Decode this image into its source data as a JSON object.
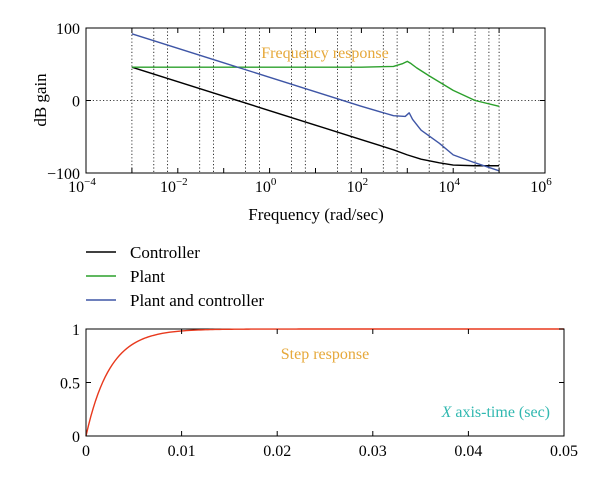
{
  "chart_data": [
    {
      "type": "line",
      "title": "Frequency response",
      "xlabel": "Frequency (rad/sec)",
      "ylabel": "dB gain",
      "xscale": "log",
      "xlim": [
        0.0001,
        1000000
      ],
      "ylim": [
        -100,
        100
      ],
      "xticks": [
        {
          "base": "10",
          "exp": "−4"
        },
        {
          "base": "10",
          "exp": "−2"
        },
        {
          "base": "10",
          "exp": "0"
        },
        {
          "base": "10",
          "exp": "2"
        },
        {
          "base": "10",
          "exp": "4"
        },
        {
          "base": "10",
          "exp": "6"
        }
      ],
      "yticks": [
        "100",
        "0",
        "−100"
      ],
      "grid": "log-decade dotted verticals at 3 and 6 per decade, dotted line at 0 dB",
      "series": [
        {
          "name": "Controller",
          "color": "#000000",
          "x": [
            0.001,
            0.01,
            0.1,
            1,
            10,
            100,
            500,
            1000,
            2000,
            5000,
            10000,
            30000,
            100000
          ],
          "y": [
            46,
            26,
            6,
            -14,
            -34,
            -54,
            -68,
            -75,
            -81,
            -86,
            -89,
            -90,
            -90
          ]
        },
        {
          "name": "Plant",
          "color": "#2ca02c",
          "x": [
            0.001,
            0.1,
            10,
            100,
            500,
            800,
            1000,
            1200,
            1600,
            3000,
            10000,
            30000,
            100000
          ],
          "y": [
            46,
            46,
            46,
            46,
            47,
            51,
            54,
            51,
            45,
            34,
            14,
            0,
            -8
          ]
        },
        {
          "name": "Plant and controller",
          "color": "#3f56a6",
          "x": [
            0.001,
            0.01,
            0.1,
            1,
            10,
            100,
            500,
            900,
            1100,
            1300,
            2000,
            5000,
            10000,
            30000,
            100000
          ],
          "y": [
            92,
            72,
            52,
            32,
            12,
            -8,
            -21,
            -22,
            -17,
            -26,
            -41,
            -59,
            -75,
            -86,
            -97
          ]
        }
      ]
    },
    {
      "type": "line",
      "title": "Step response",
      "xlabel": "X axis-time (sec)",
      "xlim": [
        0,
        0.05
      ],
      "ylim": [
        0,
        1
      ],
      "xticks": [
        "0",
        "0.01",
        "0.02",
        "0.03",
        "0.04",
        "0.05"
      ],
      "yticks": [
        "1",
        "0.5",
        "0"
      ],
      "series": [
        {
          "color": "#e8391d",
          "time_constant": 0.0025,
          "x": [
            0,
            0.001,
            0.002,
            0.003,
            0.004,
            0.005,
            0.0075,
            0.01,
            0.015,
            0.02,
            0.05
          ],
          "y": [
            0,
            0.33,
            0.55,
            0.7,
            0.8,
            0.865,
            0.95,
            0.982,
            0.998,
            1.0,
            1.0
          ]
        }
      ]
    }
  ],
  "colors": {
    "title_text": "#e6a83a",
    "xlabel_text": "#30b8b0"
  }
}
